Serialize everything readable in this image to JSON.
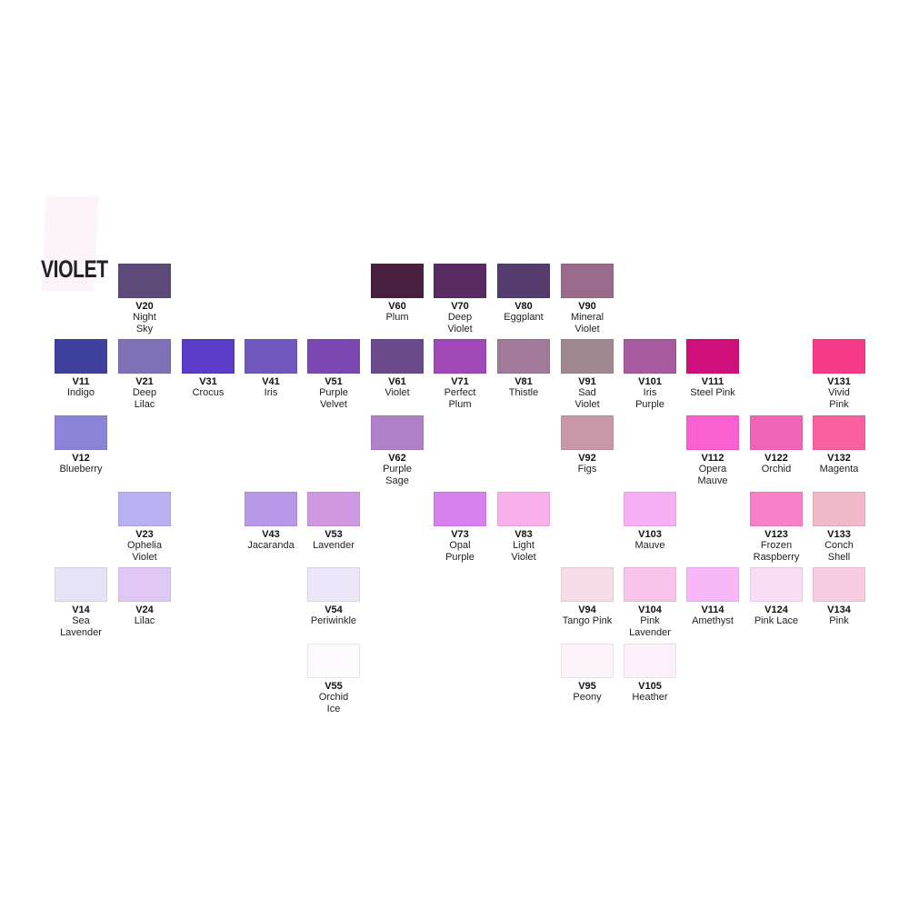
{
  "title": "VIOLET",
  "rows": [
    [
      null,
      {
        "code": "V20",
        "name": "Night\nSky",
        "color": "#5e4a78"
      },
      null,
      null,
      null,
      {
        "code": "V60",
        "name": "Plum",
        "color": "#4a2040"
      },
      {
        "code": "V70",
        "name": "Deep\nViolet",
        "color": "#5a2a62"
      },
      {
        "code": "V80",
        "name": "Eggplant",
        "color": "#553c6e"
      },
      {
        "code": "V90",
        "name": "Mineral\nViolet",
        "color": "#9a6a8a"
      },
      null,
      null,
      null,
      null
    ],
    [
      {
        "code": "V11",
        "name": "Indigo",
        "color": "#4040a0"
      },
      {
        "code": "V21",
        "name": "Deep\nLilac",
        "color": "#8070b8"
      },
      {
        "code": "V31",
        "name": "Crocus",
        "color": "#5a3cc8"
      },
      {
        "code": "V41",
        "name": "Iris",
        "color": "#7058c0"
      },
      {
        "code": "V51",
        "name": "Purple\nVelvet",
        "color": "#7a48b0"
      },
      {
        "code": "V61",
        "name": "Violet",
        "color": "#6a4a8a"
      },
      {
        "code": "V71",
        "name": "Perfect\nPlum",
        "color": "#a048b8"
      },
      {
        "code": "V81",
        "name": "Thistle",
        "color": "#a07a98"
      },
      {
        "code": "V91",
        "name": "Sad\nViolet",
        "color": "#a08890"
      },
      {
        "code": "V101",
        "name": "Iris\nPurple",
        "color": "#a85a9e"
      },
      {
        "code": "V111",
        "name": "Steel Pink",
        "color": "#d0107a"
      },
      null,
      {
        "code": "V131",
        "name": "Vivid\nPink",
        "color": "#f53a88"
      }
    ],
    [
      {
        "code": "V12",
        "name": "Blueberry",
        "color": "#8c84d8"
      },
      null,
      null,
      null,
      null,
      {
        "code": "V62",
        "name": "Purple\nSage",
        "color": "#b080c8"
      },
      null,
      null,
      {
        "code": "V92",
        "name": "Figs",
        "color": "#c898a8"
      },
      null,
      {
        "code": "V112",
        "name": "Opera\nMauve",
        "color": "#fa60d0"
      },
      {
        "code": "V122",
        "name": "Orchid",
        "color": "#f065b8"
      },
      {
        "code": "V132",
        "name": "Magenta",
        "color": "#f860a0"
      }
    ],
    [
      null,
      {
        "code": "V23",
        "name": "Ophelia\nViolet",
        "color": "#b8b0f0"
      },
      null,
      {
        "code": "V43",
        "name": "Jacaranda",
        "color": "#b898e8"
      },
      {
        "code": "V53",
        "name": "Lavender",
        "color": "#d098e0"
      },
      null,
      {
        "code": "V73",
        "name": "Opal\nPurple",
        "color": "#d880f0"
      },
      {
        "code": "V83",
        "name": "Light\nViolet",
        "color": "#f8b0ec"
      },
      null,
      {
        "code": "V103",
        "name": "Mauve",
        "color": "#f8b0f4"
      },
      null,
      {
        "code": "V123",
        "name": "Frozen\nRaspberry",
        "color": "#f880c8"
      },
      {
        "code": "V133",
        "name": "Conch\nShell",
        "color": "#f0b8c8"
      }
    ],
    [
      {
        "code": "V14",
        "name": "Sea\nLavender",
        "color": "#e6e4f4"
      },
      {
        "code": "V24",
        "name": "Lilac",
        "color": "#e0c8f4"
      },
      null,
      null,
      {
        "code": "V54",
        "name": "Periwinkle",
        "color": "#ece6f8"
      },
      null,
      null,
      null,
      {
        "code": "V94",
        "name": "Tango Pink",
        "color": "#f6dce6"
      },
      {
        "code": "V104",
        "name": "Pink\nLavender",
        "color": "#f8c4ec"
      },
      {
        "code": "V114",
        "name": "Amethyst",
        "color": "#f8b8f8"
      },
      {
        "code": "V124",
        "name": "Pink Lace",
        "color": "#fadcf4"
      },
      {
        "code": "V134",
        "name": "Pink",
        "color": "#f8cce0"
      }
    ],
    [
      null,
      null,
      null,
      null,
      {
        "code": "V55",
        "name": "Orchid\nIce",
        "color": "#fcfafc"
      },
      null,
      null,
      null,
      {
        "code": "V95",
        "name": "Peony",
        "color": "#fcf2fa"
      },
      {
        "code": "V105",
        "name": "Heather",
        "color": "#fcf0fa"
      },
      null,
      null,
      null
    ]
  ]
}
